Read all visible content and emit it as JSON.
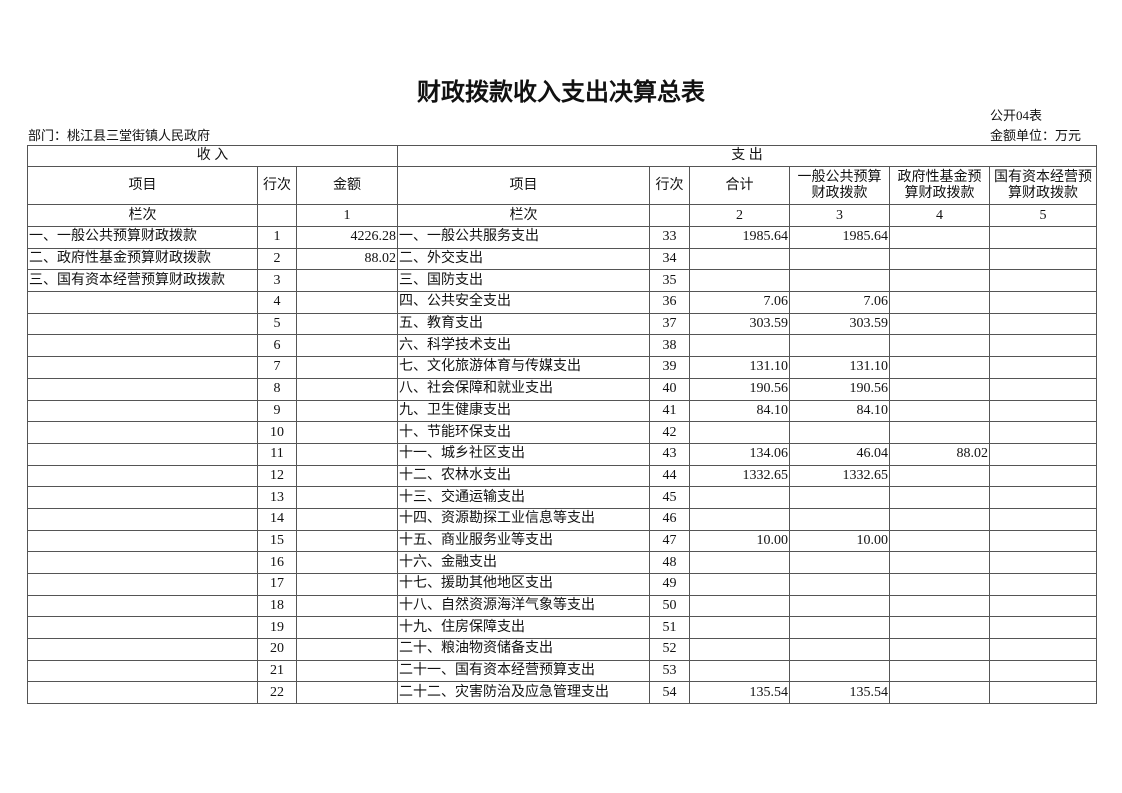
{
  "header": {
    "title": "财政拨款收入支出决算总表",
    "form_no": "公开04表",
    "department": "部门：桃江县三堂街镇人民政府",
    "unit": "金额单位：万元"
  },
  "table": {
    "groups": [
      "收 入",
      "支 出"
    ],
    "columns": [
      "项目",
      "行次",
      "金额",
      "项目",
      "行次",
      "合计",
      [
        "一般公共预算",
        "财政拨款"
      ],
      [
        "政府性基金预",
        "算财政拨款"
      ],
      [
        "国有资本经营预",
        "算财政拨款"
      ]
    ],
    "index_row": {
      "income_item": "栏次",
      "income_amount": "1",
      "expense_item": "栏次",
      "total": "2",
      "general": "3",
      "fund": "4",
      "state": "5"
    },
    "rows": [
      {
        "income_item": "一、一般公共预算财政拨款",
        "income_line": 1,
        "income_amount": "4226.28",
        "expense_item": "一、一般公共服务支出",
        "expense_line": 33,
        "total": "1985.64",
        "general": "1985.64"
      },
      {
        "income_item": "二、政府性基金预算财政拨款",
        "income_line": 2,
        "income_amount": "88.02",
        "expense_item": "二、外交支出",
        "expense_line": 34
      },
      {
        "income_item": "三、国有资本经营预算财政拨款",
        "income_line": 3,
        "expense_item": "三、国防支出",
        "expense_line": 35
      },
      {
        "income_line": 4,
        "expense_item": "四、公共安全支出",
        "expense_line": 36,
        "total": "7.06",
        "general": "7.06"
      },
      {
        "income_line": 5,
        "expense_item": "五、教育支出",
        "expense_line": 37,
        "total": "303.59",
        "general": "303.59"
      },
      {
        "income_line": 6,
        "expense_item": "六、科学技术支出",
        "expense_line": 38
      },
      {
        "income_line": 7,
        "expense_item": "七、文化旅游体育与传媒支出",
        "expense_line": 39,
        "total": "131.10",
        "general": "131.10"
      },
      {
        "income_line": 8,
        "expense_item": "八、社会保障和就业支出",
        "expense_line": 40,
        "total": "190.56",
        "general": "190.56"
      },
      {
        "income_line": 9,
        "expense_item": "九、卫生健康支出",
        "expense_line": 41,
        "total": "84.10",
        "general": "84.10"
      },
      {
        "income_line": 10,
        "expense_item": "十、节能环保支出",
        "expense_line": 42
      },
      {
        "income_line": 11,
        "expense_item": "十一、城乡社区支出",
        "expense_line": 43,
        "total": "134.06",
        "general": "46.04",
        "fund": "88.02"
      },
      {
        "income_line": 12,
        "expense_item": "十二、农林水支出",
        "expense_line": 44,
        "total": "1332.65",
        "general": "1332.65"
      },
      {
        "income_line": 13,
        "expense_item": "十三、交通运输支出",
        "expense_line": 45
      },
      {
        "income_line": 14,
        "expense_item": "十四、资源勘探工业信息等支出",
        "expense_line": 46
      },
      {
        "income_line": 15,
        "expense_item": "十五、商业服务业等支出",
        "expense_line": 47,
        "total": "10.00",
        "general": "10.00"
      },
      {
        "income_line": 16,
        "expense_item": "十六、金融支出",
        "expense_line": 48
      },
      {
        "income_line": 17,
        "expense_item": "十七、援助其他地区支出",
        "expense_line": 49
      },
      {
        "income_line": 18,
        "expense_item": "十八、自然资源海洋气象等支出",
        "expense_line": 50
      },
      {
        "income_line": 19,
        "expense_item": "十九、住房保障支出",
        "expense_line": 51
      },
      {
        "income_line": 20,
        "expense_item": "二十、粮油物资储备支出",
        "expense_line": 52
      },
      {
        "income_line": 21,
        "expense_item": "二十一、国有资本经营预算支出",
        "expense_line": 53
      },
      {
        "income_line": 22,
        "expense_item": "二十二、灾害防治及应急管理支出",
        "expense_line": 54,
        "total": "135.54",
        "general": "135.54"
      }
    ]
  }
}
